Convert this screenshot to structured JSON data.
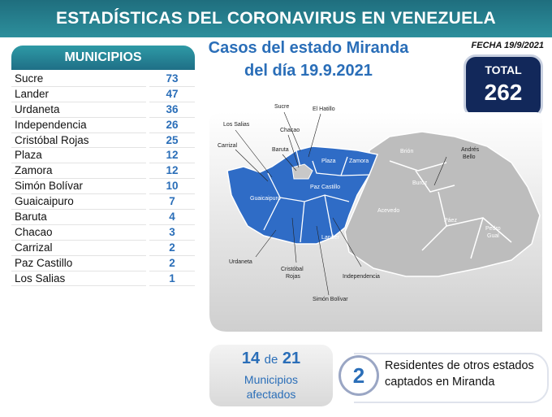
{
  "header": {
    "title": "ESTADÍSTICAS DEL CORONAVIRUS EN VENEZUELA",
    "date": "FECHA 19/9/2021"
  },
  "subtitle": [
    "Casos del estado Miranda",
    "del día 19.9.2021"
  ],
  "table": {
    "title": "MUNICIPIOS",
    "rows": [
      [
        "Sucre",
        "73"
      ],
      [
        "Lander",
        "47"
      ],
      [
        "Urdaneta",
        "36"
      ],
      [
        "Independencia",
        "26"
      ],
      [
        "Cristóbal Rojas",
        "25"
      ],
      [
        "Plaza",
        "12"
      ],
      [
        "Zamora",
        "12"
      ],
      [
        "Simón Bolívar",
        "10"
      ],
      [
        "Guaicaipuro",
        "7"
      ],
      [
        "Baruta",
        "4"
      ],
      [
        "Chacao",
        "3"
      ],
      [
        "Carrizal",
        "2"
      ],
      [
        "Paz Castillo",
        "2"
      ],
      [
        "Los Salias",
        "1"
      ]
    ]
  },
  "total": {
    "label": "TOTAL",
    "value": "262"
  },
  "map": {
    "labels": [
      "Sucre",
      "El Hatillo",
      "Los Salias",
      "Chacao",
      "Carrizal",
      "Baruta",
      "Plaza",
      "Zamora",
      "Guaicaipuro",
      "Paz Castillo",
      "Brión",
      [
        "Andrés",
        "Bello"
      ],
      "Buroz",
      "Acevedo",
      "Páez",
      [
        "Pedro",
        "Gual"
      ],
      "Urdaneta",
      "Lander",
      [
        "Cristóbal",
        "Rojas"
      ],
      "Independencia",
      "Simón Bolívar"
    ]
  },
  "affected": {
    "count": "14",
    "joiner": "de",
    "total": "21",
    "label": "Municipios afectados"
  },
  "residents": {
    "value": "2",
    "label": "Residentes de otros estados captados en Miranda"
  }
}
